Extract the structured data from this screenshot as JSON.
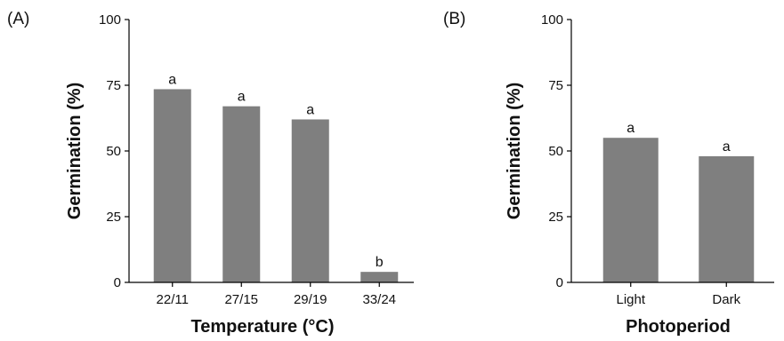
{
  "chart_data": [
    {
      "type": "bar",
      "panel_label": "(A)",
      "categories": [
        "22/11",
        "27/15",
        "29/19",
        "33/24"
      ],
      "values": [
        73.5,
        67,
        62,
        4
      ],
      "bar_labels": [
        "a",
        "a",
        "a",
        "b"
      ],
      "xlabel": "Temperature (°C)",
      "ylabel": "Germination (%)",
      "ylim": [
        0,
        100
      ],
      "yticks": [
        0,
        25,
        50,
        75,
        100
      ],
      "bar_color": "#7f7f7f",
      "grid": false,
      "legend": false
    },
    {
      "type": "bar",
      "panel_label": "(B)",
      "categories": [
        "Light",
        "Dark"
      ],
      "values": [
        55,
        48
      ],
      "bar_labels": [
        "a",
        "a"
      ],
      "xlabel": "Photoperiod",
      "ylabel": "Germination (%)",
      "ylim": [
        0,
        100
      ],
      "yticks": [
        0,
        25,
        50,
        75,
        100
      ],
      "bar_color": "#7f7f7f",
      "grid": false,
      "legend": false
    }
  ]
}
